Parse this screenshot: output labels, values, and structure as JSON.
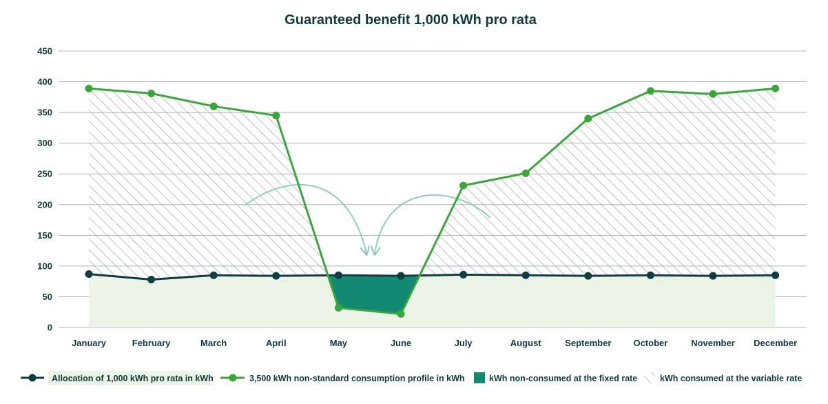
{
  "chart_data": {
    "type": "line",
    "title": "Guaranteed benefit 1,000 kWh pro rata",
    "categories": [
      "January",
      "February",
      "March",
      "April",
      "May",
      "June",
      "July",
      "August",
      "September",
      "October",
      "November",
      "December"
    ],
    "series": [
      {
        "name": "Allocation of 1,000 kWh pro rata in kWh",
        "values": [
          87,
          78,
          85,
          84,
          85,
          84,
          86,
          85,
          84,
          85,
          84,
          85
        ],
        "color": "#0f3b44"
      },
      {
        "name": "3,500 kWh non-standard consumption profile in kWh",
        "values": [
          389,
          381,
          360,
          345,
          32,
          22,
          231,
          251,
          340,
          385,
          380,
          389
        ],
        "color": "#3aa53a"
      }
    ],
    "areas": [
      {
        "name": "kWh non-consumed at the fixed rate",
        "color": "#128a72"
      },
      {
        "name": "kWh consumed at the variable rate",
        "pattern": "diagonal-hatch",
        "color": "#9a9ea4"
      }
    ],
    "allocation_fill_color": "#eaf3e6",
    "ylim": [
      0,
      450
    ],
    "yticks": [
      0,
      50,
      100,
      150,
      200,
      250,
      300,
      350,
      400,
      450
    ],
    "grid": true,
    "legend_position": "bottom",
    "xlabel": "",
    "ylabel": "",
    "annotations": [
      {
        "type": "curved-arrow",
        "from_month": "April",
        "to_month": "May",
        "color": "#8ecdc0"
      },
      {
        "type": "curved-arrow",
        "from_month": "July",
        "to_month": "June",
        "color": "#8ecdc0"
      }
    ]
  }
}
